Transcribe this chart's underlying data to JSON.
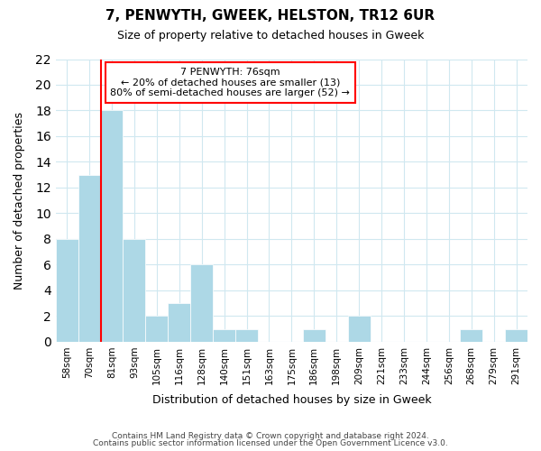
{
  "title": "7, PENWYTH, GWEEK, HELSTON, TR12 6UR",
  "subtitle": "Size of property relative to detached houses in Gweek",
  "xlabel": "Distribution of detached houses by size in Gweek",
  "ylabel": "Number of detached properties",
  "footer_lines": [
    "Contains HM Land Registry data © Crown copyright and database right 2024.",
    "Contains public sector information licensed under the Open Government Licence v3.0."
  ],
  "bins": [
    "58sqm",
    "70sqm",
    "81sqm",
    "93sqm",
    "105sqm",
    "116sqm",
    "128sqm",
    "140sqm",
    "151sqm",
    "163sqm",
    "175sqm",
    "186sqm",
    "198sqm",
    "209sqm",
    "221sqm",
    "233sqm",
    "244sqm",
    "256sqm",
    "268sqm",
    "279sqm",
    "291sqm"
  ],
  "values": [
    8,
    13,
    18,
    8,
    2,
    3,
    6,
    1,
    1,
    0,
    0,
    1,
    0,
    2,
    0,
    0,
    0,
    0,
    1,
    0,
    1
  ],
  "bar_color": "#add8e6",
  "grid_color": "#d0e8f0",
  "marker_line_color": "red",
  "annotation_title": "7 PENWYTH: 76sqm",
  "annotation_line1": "← 20% of detached houses are smaller (13)",
  "annotation_line2": "80% of semi-detached houses are larger (52) →",
  "annotation_box_color": "white",
  "annotation_box_edge_color": "red",
  "ylim": [
    0,
    22
  ],
  "yticks": [
    0,
    2,
    4,
    6,
    8,
    10,
    12,
    14,
    16,
    18,
    20,
    22
  ],
  "figsize": [
    6.0,
    5.0
  ],
  "dpi": 100
}
